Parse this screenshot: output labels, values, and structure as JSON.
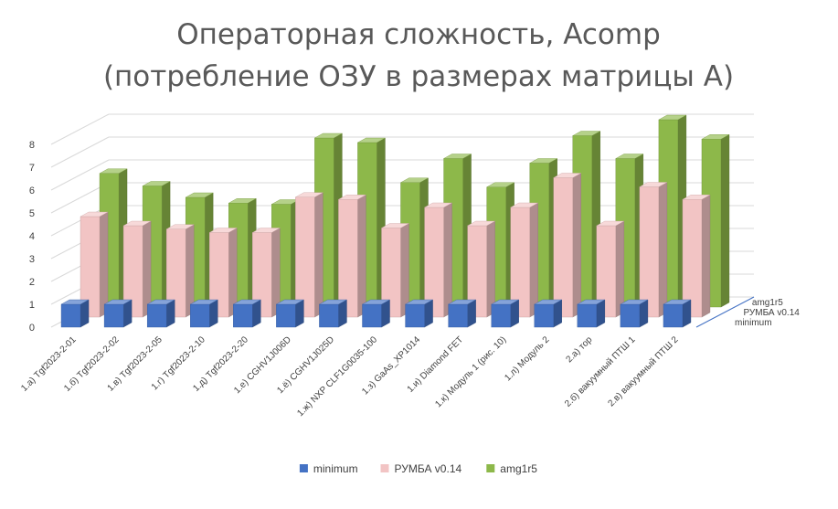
{
  "chart_data": {
    "type": "bar",
    "title": [
      "Операторная сложность, Acomp",
      "(потребление ОЗУ в размерах матрицы А)"
    ],
    "categories": [
      "1.а) Tgf2023-2-01",
      "1.б) Tgf2023-2-02",
      "1.в) Tgf2023-2-05",
      "1.г) Tgf2023-2-10",
      "1.д) Tgf2023-2-20",
      "1.е) CGHV1J006D",
      "1.ё) CGHV1J025D",
      "1.ж) NXP CLF1G0035-100",
      "1.з) GaAs_XP1014",
      "1.и) Diamond FET",
      "1.к) Модуль 1 (рис. 10)",
      "1.л) Модуль 2",
      "2.а) тор",
      "2.б) вакуумный ПТШ 1",
      "2.в) вакуумный ПТШ 2"
    ],
    "series": [
      {
        "name": "minimum",
        "color": "#4472C4",
        "values": [
          1,
          1,
          1,
          1,
          1,
          1,
          1,
          1,
          1,
          1,
          1,
          1,
          1,
          1,
          1
        ]
      },
      {
        "name": "РУМБА v0.14",
        "color": "#F2C4C4",
        "values": [
          4.4,
          4.0,
          3.85,
          3.7,
          3.7,
          5.25,
          5.15,
          3.9,
          4.8,
          4.0,
          4.8,
          6.1,
          4.0,
          5.7,
          5.15
        ]
      },
      {
        "name": "amg1r5",
        "color": "#8DB84A",
        "values": [
          5.85,
          5.3,
          4.8,
          4.55,
          4.5,
          7.4,
          7.2,
          5.45,
          6.5,
          5.25,
          6.3,
          7.5,
          6.5,
          8.2,
          7.35
        ]
      }
    ],
    "y_ticks": [
      "0",
      "1",
      "2",
      "3",
      "4",
      "5",
      "6",
      "7",
      "8"
    ],
    "ylim": [
      0,
      8
    ],
    "legend_position": "bottom",
    "grid": true,
    "style": "3d-clustered-column"
  },
  "legend": {
    "items": [
      {
        "label": "minimum",
        "color": "#4472C4"
      },
      {
        "label": "РУМБА v0.14",
        "color": "#F2C4C4"
      },
      {
        "label": "amg1r5",
        "color": "#8DB84A"
      }
    ]
  }
}
